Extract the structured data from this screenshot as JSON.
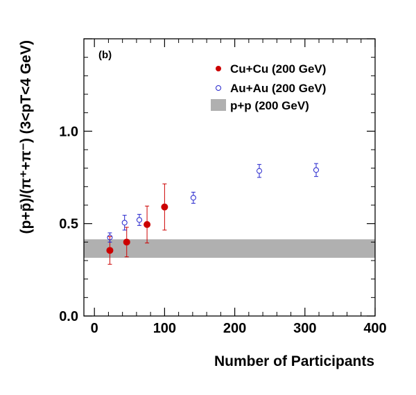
{
  "chart_data": {
    "type": "scatter",
    "panel_label": "(b)",
    "xlabel": "Number of Participants",
    "ylabel": "(p+p̄)/(π⁺+π⁻) (3<pT<4 GeV)",
    "xlim": [
      -15,
      400
    ],
    "ylim": [
      0,
      1.5
    ],
    "x_ticks": [
      0,
      100,
      200,
      300,
      400
    ],
    "y_ticks": [
      0.0,
      0.5,
      1.0
    ],
    "y_tick_labels": [
      "0.0",
      "0.5",
      "1.0"
    ],
    "grid": false,
    "legend_position": "top-right",
    "series": [
      {
        "name": "Cu+Cu (200 GeV)",
        "marker": "filled-circle",
        "color": "#cc0000",
        "points": [
          {
            "x": 22,
            "y": 0.355,
            "err": 0.075
          },
          {
            "x": 46,
            "y": 0.4,
            "err": 0.08
          },
          {
            "x": 75,
            "y": 0.495,
            "err": 0.1
          },
          {
            "x": 100,
            "y": 0.59,
            "err": 0.125
          }
        ]
      },
      {
        "name": "Au+Au (200 GeV)",
        "marker": "open-circle",
        "color": "#2222cc",
        "points": [
          {
            "x": 22,
            "y": 0.425,
            "err": 0.025
          },
          {
            "x": 43,
            "y": 0.505,
            "err": 0.04
          },
          {
            "x": 64,
            "y": 0.52,
            "err": 0.03
          },
          {
            "x": 141,
            "y": 0.64,
            "err": 0.03
          },
          {
            "x": 235,
            "y": 0.785,
            "err": 0.035
          },
          {
            "x": 316,
            "y": 0.79,
            "err": 0.035
          }
        ]
      }
    ],
    "band": {
      "name": "p+p (200 GeV)",
      "color": "#b0b0b0",
      "ymin": 0.315,
      "ymax": 0.415
    }
  }
}
